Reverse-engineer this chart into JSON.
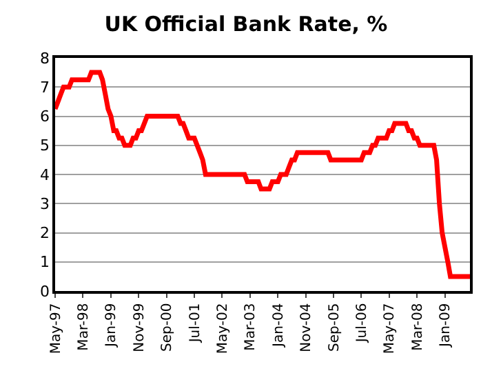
{
  "chart_data": {
    "type": "line",
    "title": "UK Official Bank Rate, %",
    "x": [
      "1997-05",
      "1997-06",
      "1997-07",
      "1997-08",
      "1997-10",
      "1997-11",
      "1998-05",
      "1998-06",
      "1998-09",
      "1998-10",
      "1998-11",
      "1998-12",
      "1999-01",
      "1999-02",
      "1999-03",
      "1999-04",
      "1999-05",
      "1999-06",
      "1999-08",
      "1999-09",
      "1999-10",
      "1999-11",
      "1999-12",
      "2000-01",
      "2000-02",
      "2001-01",
      "2001-02",
      "2001-03",
      "2001-04",
      "2001-05",
      "2001-07",
      "2001-08",
      "2001-09",
      "2001-10",
      "2001-11",
      "2003-01",
      "2003-02",
      "2003-06",
      "2003-07",
      "2003-10",
      "2003-11",
      "2004-01",
      "2004-02",
      "2004-04",
      "2004-05",
      "2004-06",
      "2004-07",
      "2004-08",
      "2005-07",
      "2005-08",
      "2006-07",
      "2006-08",
      "2006-10",
      "2006-11",
      "2006-12",
      "2007-01",
      "2007-04",
      "2007-05",
      "2007-06",
      "2007-07",
      "2007-11",
      "2007-12",
      "2008-01",
      "2008-02",
      "2008-03",
      "2008-04",
      "2008-09",
      "2008-10",
      "2008-11",
      "2008-12",
      "2009-01",
      "2009-02",
      "2009-03",
      "2009-10"
    ],
    "series": [
      {
        "color": "#ff0000",
        "values": [
          6.25,
          6.5,
          6.75,
          7.0,
          7.0,
          7.25,
          7.25,
          7.5,
          7.5,
          7.25,
          6.75,
          6.25,
          6.0,
          5.5,
          5.5,
          5.25,
          5.25,
          5.0,
          5.0,
          5.25,
          5.25,
          5.5,
          5.5,
          5.75,
          6.0,
          6.0,
          5.75,
          5.75,
          5.5,
          5.25,
          5.25,
          5.0,
          4.75,
          4.5,
          4.0,
          4.0,
          3.75,
          3.75,
          3.5,
          3.5,
          3.75,
          3.75,
          4.0,
          4.0,
          4.25,
          4.5,
          4.5,
          4.75,
          4.75,
          4.5,
          4.5,
          4.75,
          4.75,
          5.0,
          5.0,
          5.25,
          5.25,
          5.5,
          5.5,
          5.75,
          5.75,
          5.5,
          5.5,
          5.25,
          5.25,
          5.0,
          5.0,
          4.5,
          3.0,
          2.0,
          1.5,
          1.0,
          0.5,
          0.5
        ]
      }
    ],
    "xlim": [
      "1997-05",
      "2009-10"
    ],
    "xticks": [
      {
        "value": "1997-05",
        "label": "May-97"
      },
      {
        "value": "1998-03",
        "label": "Mar-98"
      },
      {
        "value": "1999-01",
        "label": "Jan-99"
      },
      {
        "value": "1999-11",
        "label": "Nov-99"
      },
      {
        "value": "2000-09",
        "label": "Sep-00"
      },
      {
        "value": "2001-07",
        "label": "Jul-01"
      },
      {
        "value": "2002-05",
        "label": "May-02"
      },
      {
        "value": "2003-03",
        "label": "Mar-03"
      },
      {
        "value": "2004-01",
        "label": "Jan-04"
      },
      {
        "value": "2004-11",
        "label": "Nov-04"
      },
      {
        "value": "2005-09",
        "label": "Sep-05"
      },
      {
        "value": "2006-07",
        "label": "Jul-06"
      },
      {
        "value": "2007-05",
        "label": "May-07"
      },
      {
        "value": "2008-03",
        "label": "Mar-08"
      },
      {
        "value": "2009-01",
        "label": "Jan-09"
      }
    ],
    "ylim": [
      0,
      8
    ],
    "yticks": [
      0,
      1,
      2,
      3,
      4,
      5,
      6,
      7,
      8
    ],
    "grid": "y",
    "legend": false,
    "marker": "none",
    "line_style": "solid"
  }
}
